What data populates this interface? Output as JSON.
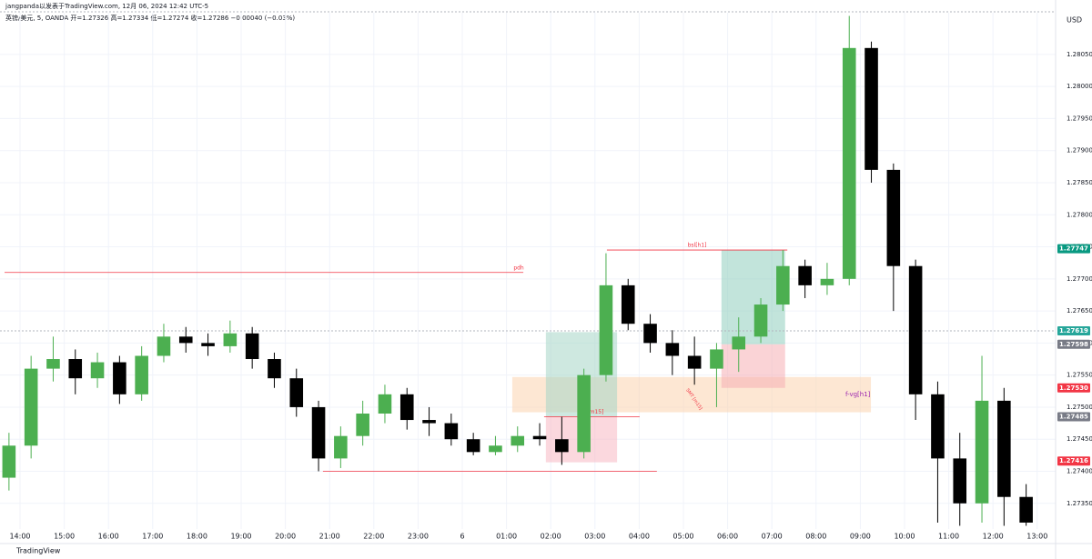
{
  "header": {
    "author_line": "jangpanda以发表于TradingView.com, 12月 06, 2024 12:42 UTC-5",
    "symbol_line": "英镑/美元, 5, OANDA  开=1.27326  高=1.27334  低=1.27274  收=1.27286  −0.00040 (−0.03%)",
    "currency": "USD",
    "brand": "TradingView"
  },
  "chart_data": {
    "type": "candlestick",
    "up_color": "#4caf50",
    "down_color": "#000000",
    "x": [
      -0.25,
      0.25,
      0.75,
      1.25,
      1.75,
      2.25,
      2.75,
      3.25,
      3.75,
      4.25,
      4.75,
      5.25,
      5.75,
      6.25,
      6.75,
      7.25,
      7.75,
      8.25,
      8.75,
      9.25,
      9.75,
      10.25,
      10.75,
      11.25,
      11.75,
      12.25,
      12.75,
      13.25,
      13.75,
      14.25,
      14.75,
      15.25,
      15.75,
      16.25,
      16.75,
      17.25,
      17.75,
      18.25,
      18.75,
      19.25,
      19.75,
      20.25,
      20.75,
      21.25,
      21.75,
      22.25,
      22.75
    ],
    "open": [
      1.2739,
      1.2744,
      1.2756,
      1.27575,
      1.27545,
      1.2757,
      1.2752,
      1.2758,
      1.2761,
      1.276,
      1.27595,
      1.27615,
      1.27575,
      1.27545,
      1.275,
      1.2742,
      1.27455,
      1.2749,
      1.2752,
      1.2748,
      1.27475,
      1.2745,
      1.2743,
      1.2744,
      1.27455,
      1.2745,
      1.2743,
      1.2755,
      1.2769,
      1.2763,
      1.276,
      1.2758,
      1.2756,
      1.2759,
      1.2761,
      1.2766,
      1.2772,
      1.2769,
      1.277,
      1.2806,
      1.2787,
      1.2772,
      1.2752,
      1.2742,
      1.2735,
      1.2751,
      1.2736
    ],
    "high": [
      1.2746,
      1.2758,
      1.2761,
      1.2759,
      1.27585,
      1.2758,
      1.27595,
      1.2763,
      1.27625,
      1.27615,
      1.27635,
      1.27625,
      1.27585,
      1.2756,
      1.2751,
      1.2747,
      1.2751,
      1.27535,
      1.2753,
      1.275,
      1.2749,
      1.2746,
      1.27455,
      1.2747,
      1.27475,
      1.27485,
      1.2756,
      1.2774,
      1.277,
      1.27645,
      1.2762,
      1.2761,
      1.276,
      1.2764,
      1.2767,
      1.27745,
      1.2773,
      1.27725,
      1.2811,
      1.2807,
      1.2788,
      1.2773,
      1.2754,
      1.2746,
      1.2758,
      1.2753,
      1.2738
    ],
    "low": [
      1.2737,
      1.2742,
      1.2754,
      1.2752,
      1.2753,
      1.27505,
      1.2751,
      1.2757,
      1.27585,
      1.2758,
      1.27585,
      1.2756,
      1.2753,
      1.27485,
      1.274,
      1.27405,
      1.2744,
      1.27475,
      1.27465,
      1.27455,
      1.2744,
      1.27425,
      1.27425,
      1.2743,
      1.2744,
      1.2741,
      1.2742,
      1.2754,
      1.2762,
      1.27585,
      1.2755,
      1.27535,
      1.275,
      1.27555,
      1.276,
      1.2765,
      1.2767,
      1.27675,
      1.2769,
      1.2785,
      1.2765,
      1.2748,
      1.2732,
      1.27315,
      1.2732,
      1.27315,
      1.27315
    ],
    "close": [
      1.2744,
      1.2756,
      1.27575,
      1.27545,
      1.2757,
      1.2752,
      1.2758,
      1.2761,
      1.276,
      1.27595,
      1.27615,
      1.27575,
      1.27545,
      1.275,
      1.2742,
      1.27455,
      1.2749,
      1.2752,
      1.2748,
      1.27475,
      1.2745,
      1.2743,
      1.2744,
      1.27455,
      1.2745,
      1.2743,
      1.2755,
      1.2769,
      1.2763,
      1.276,
      1.2758,
      1.2756,
      1.2759,
      1.2761,
      1.2766,
      1.2772,
      1.2769,
      1.277,
      1.2806,
      1.2787,
      1.2772,
      1.2752,
      1.2742,
      1.2735,
      1.2751,
      1.2736,
      1.2732
    ],
    "xlim": [
      -0.453,
      23.416
    ],
    "xticks": [
      {
        "value": 0,
        "label": "14:00"
      },
      {
        "value": 1,
        "label": "15:00"
      },
      {
        "value": 2,
        "label": "16:00"
      },
      {
        "value": 3,
        "label": "17:00"
      },
      {
        "value": 4,
        "label": "18:00"
      },
      {
        "value": 5,
        "label": "19:00"
      },
      {
        "value": 6,
        "label": "20:00"
      },
      {
        "value": 7,
        "label": "21:00"
      },
      {
        "value": 8,
        "label": "22:00"
      },
      {
        "value": 9,
        "label": "23:00"
      },
      {
        "value": 10,
        "label": "6"
      },
      {
        "value": 11,
        "label": "01:00"
      },
      {
        "value": 12,
        "label": "02:00"
      },
      {
        "value": 13,
        "label": "03:00"
      },
      {
        "value": 14,
        "label": "04:00"
      },
      {
        "value": 15,
        "label": "05:00"
      },
      {
        "value": 16,
        "label": "06:00"
      },
      {
        "value": 17,
        "label": "07:00"
      },
      {
        "value": 18,
        "label": "08:00"
      },
      {
        "value": 19,
        "label": "09:00"
      },
      {
        "value": 20,
        "label": "10:00"
      },
      {
        "value": 21,
        "label": "11:00"
      },
      {
        "value": 22,
        "label": "12:00"
      },
      {
        "value": 23,
        "label": "13:00"
      }
    ],
    "ylim": [
      1.2731,
      1.28115
    ],
    "yticks": [
      {
        "value": 1.2735,
        "label": "1.27350"
      },
      {
        "value": 1.274,
        "label": "1.27400"
      },
      {
        "value": 1.2745,
        "label": "1.27450"
      },
      {
        "value": 1.275,
        "label": "1.27500"
      },
      {
        "value": 1.2755,
        "label": "1.27550"
      },
      {
        "value": 1.276,
        "label": "1.27600"
      },
      {
        "value": 1.2765,
        "label": "1.27650"
      },
      {
        "value": 1.277,
        "label": "1.27700"
      },
      {
        "value": 1.2775,
        "label": "1.27750"
      },
      {
        "value": 1.278,
        "label": "1.27800"
      },
      {
        "value": 1.2785,
        "label": "1.27850"
      },
      {
        "value": 1.279,
        "label": "1.27900"
      },
      {
        "value": 1.2795,
        "label": "1.27950"
      },
      {
        "value": 1.28,
        "label": "1.28000"
      },
      {
        "value": 1.2805,
        "label": "1.28050"
      }
    ],
    "grid": true,
    "current_price": 1.27619,
    "price_tags": [
      {
        "value": 1.27747,
        "color": "#089981"
      },
      {
        "value": 1.27619,
        "color": "#26a69a"
      },
      {
        "value": 1.27598,
        "color": "#787b86"
      },
      {
        "value": 1.2753,
        "label": "1.27530",
        "color": "#f23645"
      },
      {
        "value": 1.27485,
        "color": "#787b86"
      },
      {
        "value": 1.27416,
        "color": "#f23645"
      }
    ],
    "zones": [
      {
        "x0": 11.13,
        "x1": 19.24,
        "top": 1.27547,
        "bottom": 1.27492,
        "color": "#fbd3ae",
        "label": "f-vg[h1]",
        "label_color": "#9c27b0"
      },
      {
        "x0": 11.89,
        "x1": 13.5,
        "top": 1.27617,
        "bottom": 1.27485,
        "color": "#a5d6c7"
      },
      {
        "x0": 11.89,
        "x1": 13.5,
        "top": 1.27485,
        "bottom": 1.27414,
        "color": "#f7b8c2"
      },
      {
        "x0": 15.86,
        "x1": 17.3,
        "top": 1.27745,
        "bottom": 1.27598,
        "color": "#8fcdbd"
      },
      {
        "x0": 15.86,
        "x1": 17.3,
        "top": 1.27598,
        "bottom": 1.2753,
        "color": "#f5aeb5"
      }
    ],
    "levels": [
      {
        "label": "pdh",
        "price": 1.2771,
        "from": -0.35,
        "to": 11.38,
        "color": "#f23645"
      },
      {
        "price": 1.274,
        "from": 6.85,
        "to": 14.4,
        "color": "#f23645"
      },
      {
        "label": "bsl[h1]",
        "price": 1.27745,
        "from": 13.27,
        "to": 17.35,
        "color": "#f23645"
      },
      {
        "label": "ssl[m15]",
        "price": 1.27485,
        "from": 11.85,
        "to": 14.01,
        "color": "#f23645"
      }
    ],
    "smt_label": "SMT [m15]"
  }
}
